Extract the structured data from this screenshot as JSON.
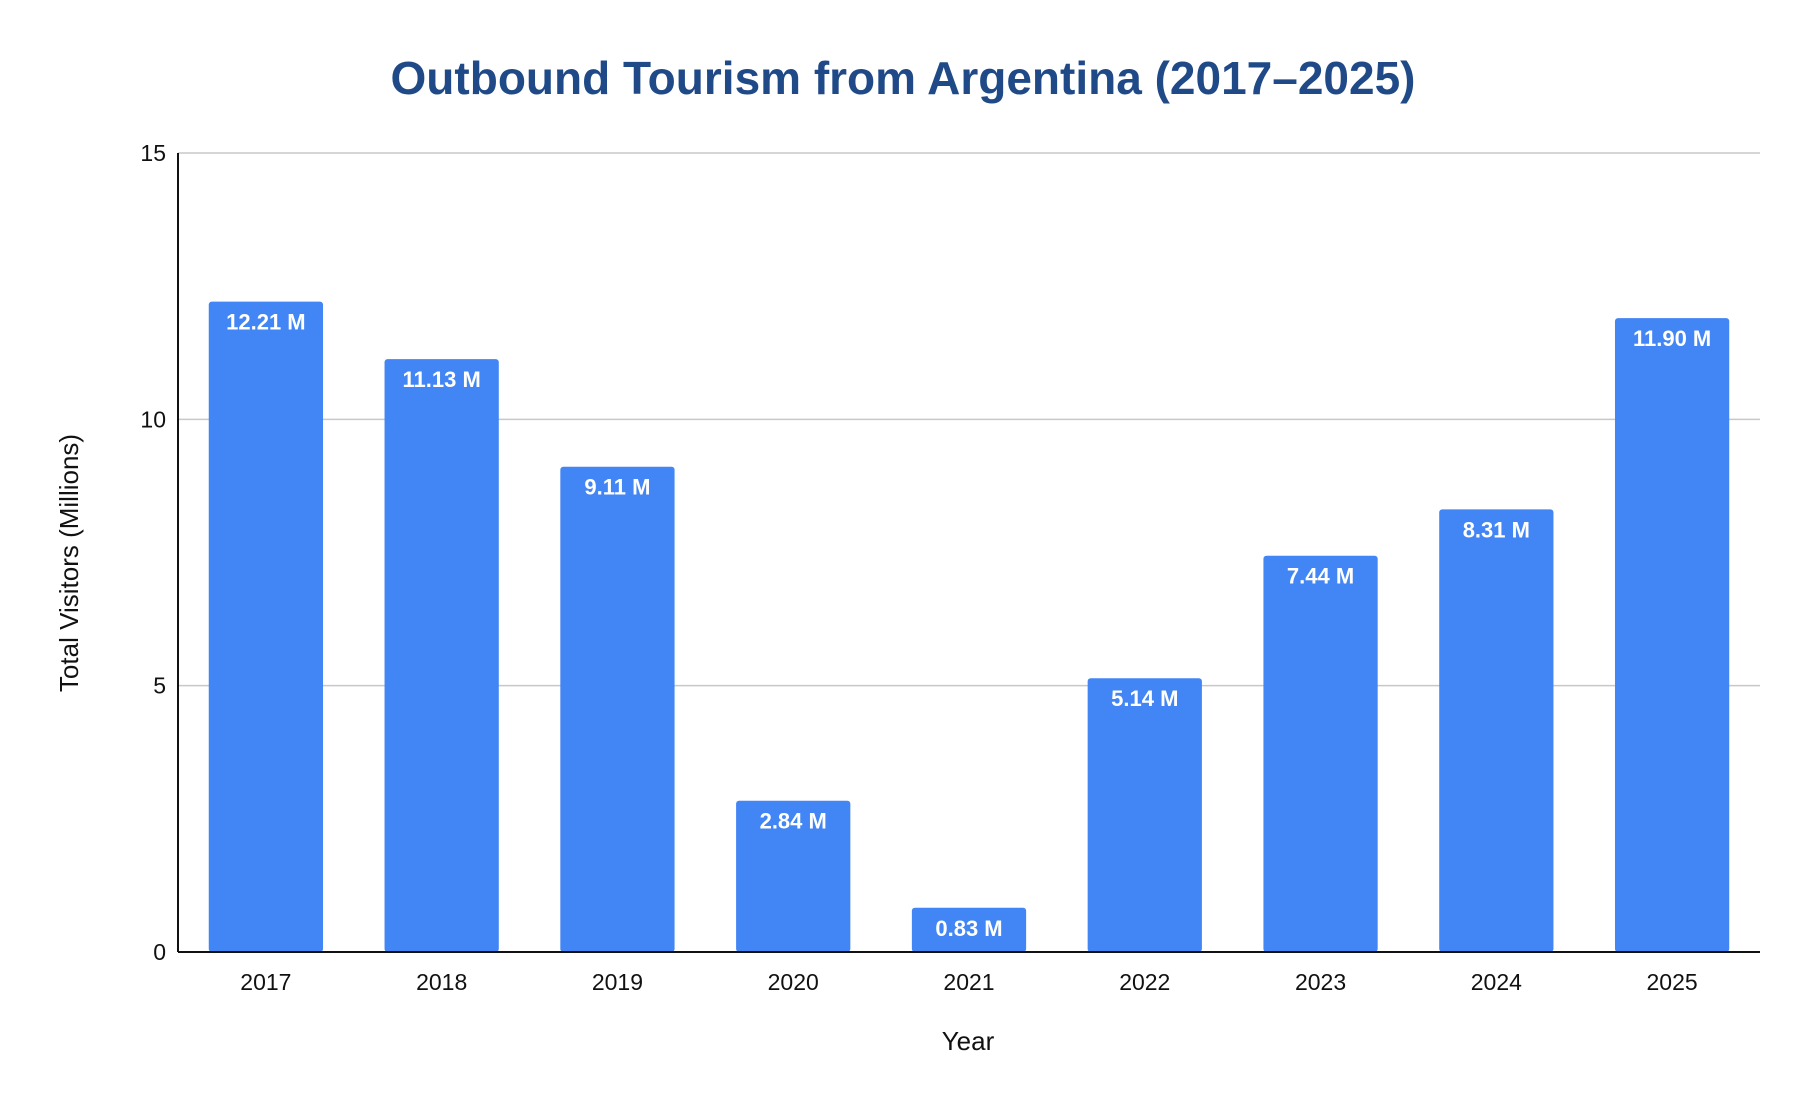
{
  "chart_data": {
    "type": "bar",
    "title": "Outbound Tourism from Argentina (2017–2025)",
    "xlabel": "Year",
    "ylabel": "Total Visitors (Millions)",
    "categories": [
      "2017",
      "2018",
      "2019",
      "2020",
      "2021",
      "2022",
      "2023",
      "2024",
      "2025"
    ],
    "values": [
      12.21,
      11.13,
      9.11,
      2.84,
      0.83,
      5.14,
      7.44,
      8.31,
      11.9
    ],
    "data_labels": [
      "12.21 M",
      "11.13 M",
      "9.11 M",
      "2.84 M",
      "0.83 M",
      "5.14 M",
      "7.44 M",
      "8.31 M",
      "11.90 M"
    ],
    "ylim": [
      0,
      15
    ],
    "yticks": [
      0,
      5,
      10,
      15
    ],
    "ytick_labels": [
      "0",
      "5",
      "10",
      "15"
    ],
    "grid": true,
    "legend": "none",
    "colors": {
      "bar": "#4285F4",
      "title": "#1F4A87",
      "grid": "#C8C8C8",
      "axis": "#111111"
    }
  }
}
